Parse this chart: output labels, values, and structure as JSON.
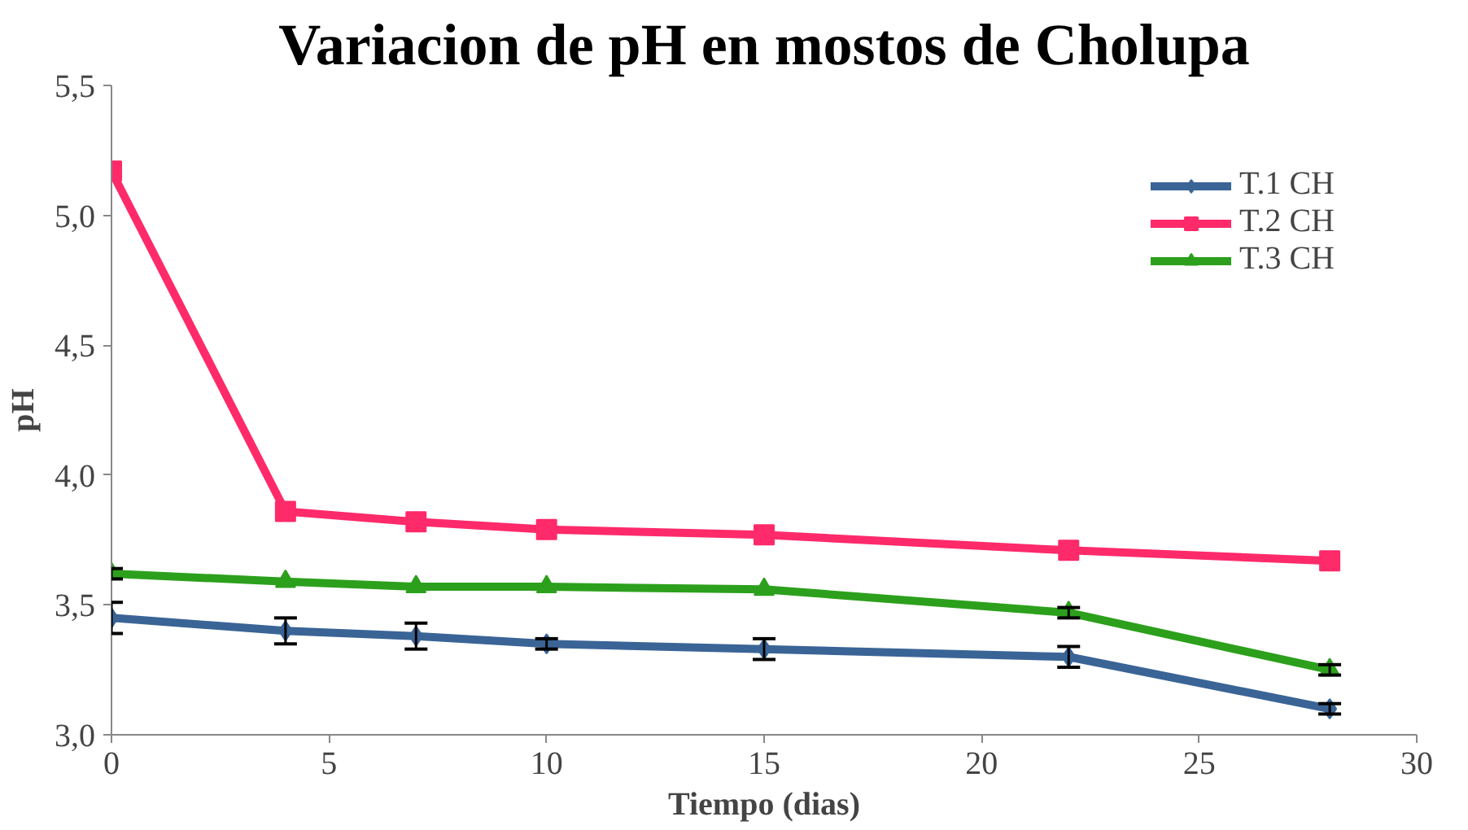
{
  "chart_data": {
    "type": "line",
    "title": "Variacion de pH en mostos de Cholupa",
    "xlabel": "Tiempo (dias)",
    "ylabel": "pH",
    "x": [
      0,
      4,
      7,
      10,
      15,
      22,
      28
    ],
    "xlim": [
      0,
      30
    ],
    "xticks": [
      0,
      5,
      10,
      15,
      20,
      25,
      30
    ],
    "ylim": [
      3.0,
      5.5
    ],
    "yticks": [
      {
        "value": 3.0,
        "label": "3,0"
      },
      {
        "value": 3.5,
        "label": "3,5"
      },
      {
        "value": 4.0,
        "label": "4,0"
      },
      {
        "value": 4.5,
        "label": "4,5"
      },
      {
        "value": 5.0,
        "label": "5,0"
      },
      {
        "value": 5.5,
        "label": "5,5"
      }
    ],
    "grid": false,
    "legend": "top right",
    "series": [
      {
        "name": "T.1 CH",
        "color": "#3a6496",
        "marker": "diamond",
        "values": [
          3.45,
          3.4,
          3.38,
          3.35,
          3.33,
          3.3,
          3.1
        ],
        "errors": [
          0.06,
          0.05,
          0.05,
          0.02,
          0.04,
          0.04,
          0.02
        ]
      },
      {
        "name": "T.2 CH",
        "color": "#ff2a6a",
        "marker": "square",
        "values": [
          5.17,
          3.86,
          3.82,
          3.79,
          3.77,
          3.71,
          3.67
        ]
      },
      {
        "name": "T.3 CH",
        "color": "#2ca01c",
        "marker": "triangle",
        "values": [
          3.62,
          3.59,
          3.57,
          3.57,
          3.56,
          3.47,
          3.25
        ],
        "errors": [
          0.02,
          null,
          null,
          null,
          null,
          0.02,
          0.02
        ]
      }
    ]
  }
}
